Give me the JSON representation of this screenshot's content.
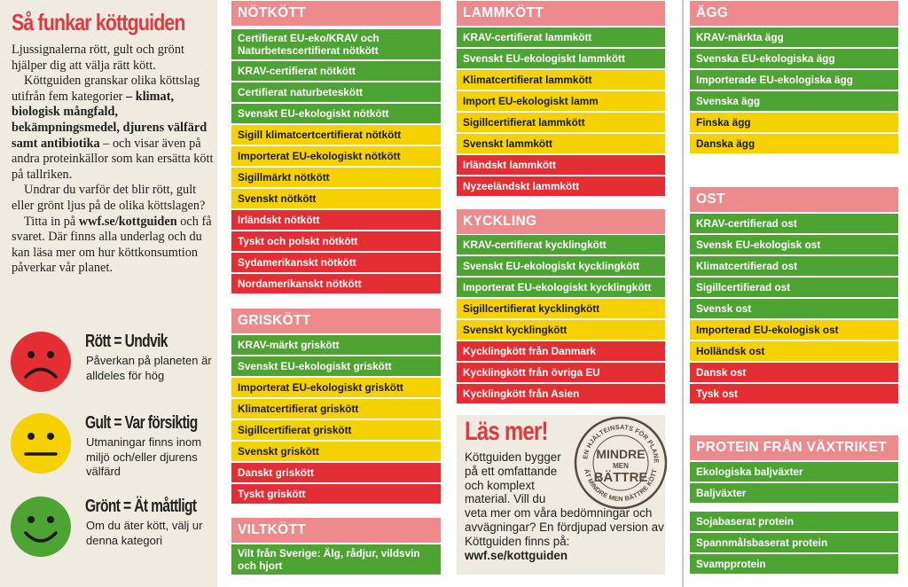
{
  "intro": {
    "title": "Så funkar köttguiden",
    "p1": "Ljussignalerna rött, gult och grönt hjälper dig att välja rätt kött.",
    "p2_a": "Köttguiden granskar olika köttslag utifrån fem kategorier ",
    "p2_b": "– klimat, biologisk mångfald, bekämpningsmedel, djurens välfärd samt antibiotika",
    "p2_c": " – och visar även på andra proteinkällor som kan ersätta kött på tallriken.",
    "p3": "Undrar du varför det blir rött, gult eller grönt ljus på de olika köttslagen?",
    "p4_a": "Titta in på ",
    "p4_link": "wwf.se/kottguiden",
    "p4_b": " och få svaret. Där finns alla underlag och du kan läsa mer om hur köttkonsumtion påverkar vår planet."
  },
  "legend": [
    {
      "title": "Rött = Undvik",
      "desc": "Påverkan på planeten är alldeles för hög",
      "color": "#e52e34",
      "icon": "sad-face-icon"
    },
    {
      "title": "Gult = Var försiktig",
      "desc": "Utmaningar finns inom miljö och/eller djurens välfärd",
      "color": "#f5d100",
      "icon": "neutral-face-icon"
    },
    {
      "title": "Grönt = Ät måttligt",
      "desc": "Om du äter kött, välj ur denna kategori",
      "color": "#4ea432",
      "icon": "happy-face-icon"
    }
  ],
  "categories": {
    "notkott": {
      "title": "NÖTKÖTT",
      "items": [
        {
          "label": "Certifierat EU-eko/KRAV och Naturbetescertifierat nötkött",
          "rating": "green"
        },
        {
          "label": "KRAV-certifierat nötkött",
          "rating": "green"
        },
        {
          "label": "Certifierat naturbeteskött",
          "rating": "green"
        },
        {
          "label": "Svenskt  EU-ekologiskt nötkött",
          "rating": "green"
        },
        {
          "label": "Sigill klimatcertcertifierat nötkött",
          "rating": "yellow"
        },
        {
          "label": "Importerat EU-ekologiskt nötkött",
          "rating": "yellow"
        },
        {
          "label": "Sigillmärkt nötkött",
          "rating": "yellow"
        },
        {
          "label": "Svenskt nötkött",
          "rating": "yellow"
        },
        {
          "label": "Irländskt nötkött",
          "rating": "red"
        },
        {
          "label": "Tyskt och polskt nötkött",
          "rating": "red"
        },
        {
          "label": "Sydamerikanskt nötkött",
          "rating": "red"
        },
        {
          "label": "Nordamerikanskt nötkött",
          "rating": "red"
        }
      ]
    },
    "griskott": {
      "title": "GRISKÖTT",
      "items": [
        {
          "label": "KRAV-märkt griskött",
          "rating": "green"
        },
        {
          "label": "Svenskt EU-ekologiskt griskött",
          "rating": "green"
        },
        {
          "label": "Importerat EU-ekologiskt griskött",
          "rating": "yellow"
        },
        {
          "label": "Klimatcertifierat griskött",
          "rating": "yellow"
        },
        {
          "label": "Sigillcertifierat griskött",
          "rating": "yellow"
        },
        {
          "label": "Svenskt griskött",
          "rating": "yellow"
        },
        {
          "label": "Danskt griskött",
          "rating": "red"
        },
        {
          "label": "Tyskt griskött",
          "rating": "red"
        }
      ]
    },
    "viltkott": {
      "title": "VILTKÖTT",
      "items": [
        {
          "label": "Vilt från Sverige: Älg, rådjur, vildsvin och hjort",
          "rating": "green"
        }
      ]
    },
    "lammkott": {
      "title": "LAMMKÖTT",
      "items": [
        {
          "label": "KRAV-certifierat lammkött",
          "rating": "green"
        },
        {
          "label": "Svenskt EU-ekologiskt lammkött",
          "rating": "green"
        },
        {
          "label": "Klimatcertifierat lammkött",
          "rating": "yellow"
        },
        {
          "label": "Import EU-ekologiskt lamm",
          "rating": "yellow"
        },
        {
          "label": "Sigillcertifierat lammkött",
          "rating": "yellow"
        },
        {
          "label": "Svenskt lammkött",
          "rating": "yellow"
        },
        {
          "label": "Irländskt lammkött",
          "rating": "red"
        },
        {
          "label": "Nyzeeländskt lammkött",
          "rating": "red"
        }
      ]
    },
    "kyckling": {
      "title": "KYCKLING",
      "items": [
        {
          "label": "KRAV-certifierat kycklingkött",
          "rating": "green"
        },
        {
          "label": "Svenskt EU-ekologiskt kycklingkött",
          "rating": "green"
        },
        {
          "label": "Importerat EU-ekologiskt kycklingkött",
          "rating": "green"
        },
        {
          "label": "Sigillcertifierat kycklingkött",
          "rating": "yellow"
        },
        {
          "label": "Svenskt kycklingkött",
          "rating": "yellow"
        },
        {
          "label": "Kycklingkött från Danmark",
          "rating": "red"
        },
        {
          "label": "Kycklingkött från övriga EU",
          "rating": "red"
        },
        {
          "label": "Kycklingkött från Asien",
          "rating": "red"
        }
      ]
    },
    "agg": {
      "title": "ÄGG",
      "items": [
        {
          "label": "KRAV-märkta ägg",
          "rating": "green"
        },
        {
          "label": "Svenska EU-ekologiska ägg",
          "rating": "green"
        },
        {
          "label": "Importerade EU-ekologiska ägg",
          "rating": "green"
        },
        {
          "label": "Svenska ägg",
          "rating": "green"
        },
        {
          "label": "Finska ägg",
          "rating": "yellow"
        },
        {
          "label": "Danska ägg",
          "rating": "yellow"
        }
      ]
    },
    "ost": {
      "title": "OST",
      "items": [
        {
          "label": "KRAV-certifierad ost",
          "rating": "green"
        },
        {
          "label": "Svensk EU-ekologisk ost",
          "rating": "green"
        },
        {
          "label": "Klimatcertifierad ost",
          "rating": "green"
        },
        {
          "label": "Sigillcertifierad ost",
          "rating": "green"
        },
        {
          "label": "Svensk ost",
          "rating": "green"
        },
        {
          "label": "Importerad EU-ekologisk ost",
          "rating": "yellow"
        },
        {
          "label": "Holländsk ost",
          "rating": "yellow"
        },
        {
          "label": "Dansk ost",
          "rating": "red"
        },
        {
          "label": "Tysk ost",
          "rating": "red"
        }
      ]
    },
    "protein": {
      "title": "PROTEIN FRÅN VÄXTRIKET",
      "items": [
        {
          "label": "Ekologiska baljväxter",
          "rating": "green"
        },
        {
          "label": "Baljväxter",
          "rating": "green"
        },
        {
          "label": "Sojabaserat protein",
          "rating": "green"
        },
        {
          "label": "Spannmålsbaserat protein",
          "rating": "green"
        },
        {
          "label": "Svampprotein",
          "rating": "green"
        }
      ]
    }
  },
  "readmore": {
    "title": "Läs mer!",
    "text_narrow": "Köttguiden bygger på ett omfattande och komplext material. Vill du",
    "text_wide": "veta mer om våra bedömningar och avvägningar? En fördjupad version av Köttguiden finns på: ",
    "link": "wwf.se/kottguiden"
  },
  "seal": {
    "top_arc": "GÖR EN HJÄLTEINSATS FÖR PLANETEN",
    "bottom_arc": "ÄT MINDRE MEN BÄTTRE KÖTT",
    "center_1": "MINDRE",
    "center_2": "MEN",
    "center_3": "BÄTTRE"
  }
}
